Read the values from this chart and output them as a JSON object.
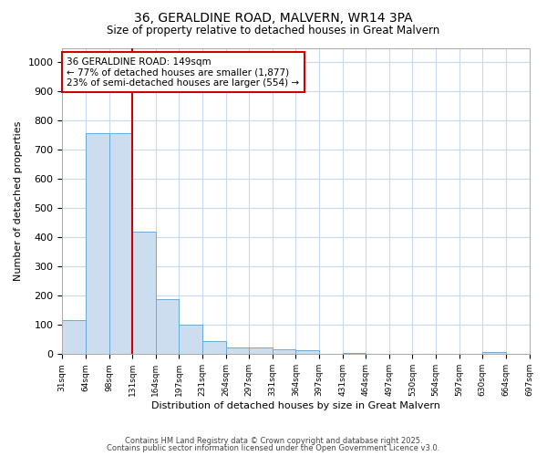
{
  "title_line1": "36, GERALDINE ROAD, MALVERN, WR14 3PA",
  "title_line2": "Size of property relative to detached houses in Great Malvern",
  "xlabel": "Distribution of detached houses by size in Great Malvern",
  "ylabel": "Number of detached properties",
  "bar_values": [
    118,
    757,
    757,
    420,
    188,
    100,
    45,
    22,
    22,
    18,
    14,
    0,
    5,
    0,
    0,
    0,
    0,
    0,
    8,
    0
  ],
  "categories": [
    "31sqm",
    "64sqm",
    "98sqm",
    "131sqm",
    "164sqm",
    "197sqm",
    "231sqm",
    "264sqm",
    "297sqm",
    "331sqm",
    "364sqm",
    "397sqm",
    "431sqm",
    "464sqm",
    "497sqm",
    "530sqm",
    "564sqm",
    "597sqm",
    "630sqm",
    "664sqm",
    "697sqm"
  ],
  "ylim": [
    0,
    1050
  ],
  "yticks": [
    0,
    100,
    200,
    300,
    400,
    500,
    600,
    700,
    800,
    900,
    1000
  ],
  "bar_color": "#ccddf0",
  "bar_edge_color": "#6aaad4",
  "annotation_box_text": "36 GERALDINE ROAD: 149sqm\n← 77% of detached houses are smaller (1,877)\n23% of semi-detached houses are larger (554) →",
  "vline_color": "#cc0000",
  "vline_x": 3.0,
  "footer_line1": "Contains HM Land Registry data © Crown copyright and database right 2025.",
  "footer_line2": "Contains public sector information licensed under the Open Government Licence v3.0.",
  "background_color": "#ffffff",
  "grid_color": "#c8d8f0"
}
